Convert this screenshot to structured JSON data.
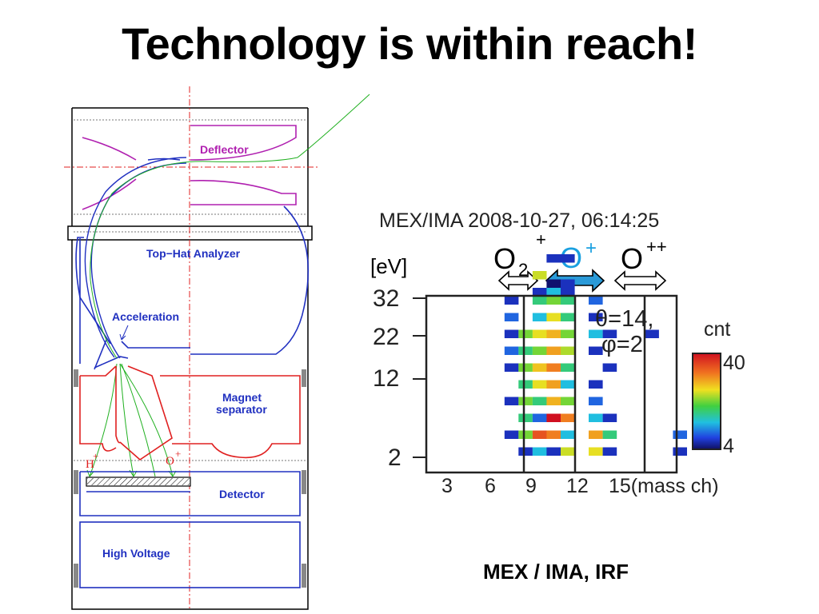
{
  "slide": {
    "title": "Technology is within reach!",
    "caption": "MEX / IMA, IRF"
  },
  "instrument_diagram": {
    "labels": {
      "deflector": "Deflector",
      "top_hat": "Top−Hat Analyzer",
      "acceleration": "Acceleration",
      "magnet_line1": "Magnet",
      "magnet_line2": "separator",
      "detector": "Detector",
      "high_voltage": "High Voltage",
      "h_ion": "H",
      "o_ion": "O",
      "plus": "+"
    },
    "colors": {
      "deflector": "#b020b0",
      "analyzer": "#2030c0",
      "magnet": "#e02020",
      "trajectory": "#20b020",
      "frame": "#000000",
      "axis": "#e02020"
    }
  },
  "ima_plot": {
    "header": "MEX/IMA  2008-10-27, 06:14:25",
    "ions": [
      {
        "base": "O",
        "sub": "2",
        "sup": "+",
        "color": "#000000"
      },
      {
        "base": "O",
        "sub": "",
        "sup": "+",
        "color": "#1aa0e0"
      },
      {
        "base": "O",
        "sub": "",
        "sup": "++",
        "color": "#000000"
      }
    ],
    "y_unit": "[eV]",
    "y_ticks": [
      "32",
      "22",
      "12",
      "2"
    ],
    "x_ticks": [
      "3",
      "6",
      "9",
      "12"
    ],
    "x_last": "15(mass ch)",
    "theta": "θ=14,",
    "phi": "φ=2",
    "colorbar": {
      "label": "cnt",
      "max": "40",
      "min": "4"
    },
    "chart_data": {
      "type": "heatmap",
      "title": "MEX/IMA  2008-10-27, 06:14:25",
      "ylabel": "[eV]",
      "xlabel": "(mass ch)",
      "x_ticks": [
        3,
        6,
        9,
        12,
        15
      ],
      "y_ticks": [
        32,
        22,
        12,
        2
      ],
      "color_range": [
        4,
        40
      ],
      "cells": [
        [
          9,
          31,
          7
        ],
        [
          10,
          31,
          7
        ],
        [
          8,
          29,
          25
        ],
        [
          9,
          28,
          4
        ],
        [
          10,
          28,
          7
        ],
        [
          8,
          27,
          7
        ],
        [
          9,
          27,
          14
        ],
        [
          10,
          27,
          7
        ],
        [
          6,
          26,
          7
        ],
        [
          8,
          26,
          18
        ],
        [
          9,
          26,
          22
        ],
        [
          10,
          26,
          18
        ],
        [
          12,
          26,
          10
        ],
        [
          6,
          24,
          10
        ],
        [
          8,
          24,
          14
        ],
        [
          9,
          24,
          26
        ],
        [
          10,
          24,
          18
        ],
        [
          12,
          24,
          7
        ],
        [
          6,
          22,
          7
        ],
        [
          7,
          22,
          22
        ],
        [
          8,
          22,
          26
        ],
        [
          9,
          22,
          29
        ],
        [
          10,
          22,
          22
        ],
        [
          12,
          22,
          14
        ],
        [
          13,
          22,
          7
        ],
        [
          16,
          22,
          7
        ],
        [
          6,
          20,
          10
        ],
        [
          7,
          20,
          18
        ],
        [
          8,
          20,
          22
        ],
        [
          9,
          20,
          30
        ],
        [
          10,
          20,
          24
        ],
        [
          12,
          20,
          7
        ],
        [
          6,
          18,
          7
        ],
        [
          7,
          18,
          22
        ],
        [
          8,
          18,
          28
        ],
        [
          9,
          18,
          32
        ],
        [
          10,
          18,
          18
        ],
        [
          13,
          18,
          7
        ],
        [
          7,
          16,
          18
        ],
        [
          8,
          16,
          26
        ],
        [
          9,
          16,
          30
        ],
        [
          10,
          16,
          14
        ],
        [
          12,
          16,
          7
        ],
        [
          6,
          14,
          7
        ],
        [
          7,
          14,
          22
        ],
        [
          8,
          14,
          18
        ],
        [
          9,
          14,
          29
        ],
        [
          10,
          14,
          22
        ],
        [
          12,
          14,
          10
        ],
        [
          7,
          12,
          18
        ],
        [
          8,
          12,
          10
        ],
        [
          9,
          12,
          40
        ],
        [
          10,
          12,
          32
        ],
        [
          12,
          12,
          14
        ],
        [
          13,
          12,
          7
        ],
        [
          6,
          10,
          7
        ],
        [
          7,
          10,
          22
        ],
        [
          8,
          10,
          35
        ],
        [
          9,
          10,
          32
        ],
        [
          10,
          10,
          14
        ],
        [
          12,
          10,
          30
        ],
        [
          13,
          10,
          18
        ],
        [
          18,
          10,
          10
        ],
        [
          7,
          8,
          7
        ],
        [
          8,
          8,
          14
        ],
        [
          9,
          8,
          7
        ],
        [
          10,
          8,
          25
        ],
        [
          12,
          8,
          26
        ],
        [
          13,
          8,
          7
        ],
        [
          18,
          8,
          7
        ]
      ]
    }
  }
}
